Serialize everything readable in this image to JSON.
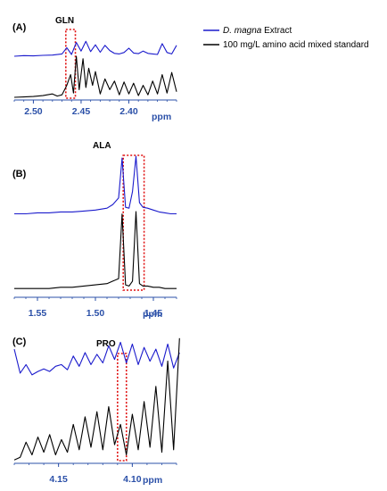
{
  "legend": [
    {
      "italic": "D. magna",
      "rest": " Extract",
      "color": "#1a1acc"
    },
    {
      "italic": "",
      "rest": "100 mg/L amino acid mixed standard",
      "color": "#000000"
    }
  ],
  "colors": {
    "extract": "#1a1acc",
    "standard": "#000000",
    "axis": "#2b50a8",
    "highlight": "#e01010"
  },
  "chart_data": [
    {
      "type": "line",
      "panel": "(A)",
      "compound": "GLN",
      "xlabel": "ppm",
      "xlim": [
        2.52,
        2.35
      ],
      "ticks": [
        2.5,
        2.45,
        2.4
      ],
      "tick_labels": [
        "2.50",
        "2.45",
        "2.40"
      ],
      "highlight": [
        2.466,
        2.456
      ],
      "series": [
        {
          "name": "D. magna Extract",
          "color": "#1a1acc",
          "x": [
            2.52,
            2.51,
            2.5,
            2.49,
            2.48,
            2.47,
            2.465,
            2.46,
            2.455,
            2.45,
            2.445,
            2.44,
            2.435,
            2.43,
            2.425,
            2.42,
            2.415,
            2.41,
            2.405,
            2.4,
            2.395,
            2.39,
            2.385,
            2.38,
            2.375,
            2.37,
            2.365,
            2.36,
            2.355,
            2.35
          ],
          "y": [
            0.22,
            0.24,
            0.23,
            0.25,
            0.26,
            0.3,
            0.52,
            0.28,
            0.7,
            0.4,
            0.74,
            0.38,
            0.62,
            0.36,
            0.6,
            0.42,
            0.32,
            0.3,
            0.35,
            0.5,
            0.33,
            0.31,
            0.4,
            0.32,
            0.3,
            0.28,
            0.66,
            0.35,
            0.3,
            0.6
          ]
        },
        {
          "name": "100 mg/L amino acid mixed standard",
          "color": "#000000",
          "x": [
            2.52,
            2.51,
            2.5,
            2.49,
            2.48,
            2.475,
            2.47,
            2.465,
            2.461,
            2.458,
            2.455,
            2.452,
            2.448,
            2.445,
            2.442,
            2.438,
            2.435,
            2.43,
            2.425,
            2.42,
            2.415,
            2.41,
            2.405,
            2.4,
            2.395,
            2.39,
            2.385,
            2.38,
            2.375,
            2.37,
            2.365,
            2.36,
            2.355,
            2.35
          ],
          "y": [
            0.02,
            0.03,
            0.04,
            0.06,
            0.1,
            0.05,
            0.08,
            0.3,
            0.55,
            0.12,
            0.98,
            0.2,
            0.92,
            0.25,
            0.7,
            0.3,
            0.62,
            0.1,
            0.45,
            0.2,
            0.4,
            0.08,
            0.38,
            0.1,
            0.35,
            0.06,
            0.3,
            0.08,
            0.4,
            0.1,
            0.55,
            0.12,
            0.6,
            0.15
          ]
        }
      ]
    },
    {
      "type": "line",
      "panel": "(B)",
      "compound": "ALA",
      "xlabel": "ppm",
      "xlim": [
        1.57,
        1.43
      ],
      "ticks": [
        1.55,
        1.5,
        1.45
      ],
      "tick_labels": [
        "1.55",
        "1.50",
        "1.45"
      ],
      "highlight": [
        1.476,
        1.458
      ],
      "series": [
        {
          "name": "D. magna Extract",
          "color": "#1a1acc",
          "x": [
            1.57,
            1.56,
            1.55,
            1.54,
            1.53,
            1.52,
            1.51,
            1.5,
            1.49,
            1.485,
            1.48,
            1.477,
            1.474,
            1.471,
            1.468,
            1.465,
            1.462,
            1.459,
            1.455,
            1.45,
            1.445,
            1.44,
            1.435,
            1.43
          ],
          "y": [
            0.38,
            0.38,
            0.39,
            0.39,
            0.4,
            0.4,
            0.41,
            0.42,
            0.44,
            0.48,
            0.55,
            0.98,
            0.45,
            0.44,
            0.62,
            1.0,
            0.5,
            0.45,
            0.44,
            0.42,
            0.4,
            0.39,
            0.38,
            0.38
          ]
        },
        {
          "name": "100 mg/L amino acid mixed standard",
          "color": "#000000",
          "x": [
            1.57,
            1.56,
            1.55,
            1.54,
            1.53,
            1.52,
            1.51,
            1.5,
            1.49,
            1.485,
            1.48,
            1.477,
            1.474,
            1.471,
            1.468,
            1.465,
            1.462,
            1.459,
            1.455,
            1.45,
            1.445,
            1.44,
            1.435,
            1.43
          ],
          "y": [
            0.02,
            0.02,
            0.02,
            0.02,
            0.03,
            0.03,
            0.04,
            0.05,
            0.06,
            0.08,
            0.1,
            0.62,
            0.05,
            0.04,
            0.08,
            0.64,
            0.06,
            0.04,
            0.04,
            0.03,
            0.03,
            0.02,
            0.02,
            0.02
          ]
        }
      ]
    },
    {
      "type": "line",
      "panel": "(C)",
      "compound": "PRO",
      "xlabel": "ppm",
      "xlim": [
        4.18,
        4.07
      ],
      "ticks": [
        4.15,
        4.1
      ],
      "tick_labels": [
        "4.15",
        "4.10"
      ],
      "highlight": [
        4.11,
        4.104
      ],
      "series": [
        {
          "name": "D. magna Extract",
          "color": "#1a1acc",
          "x": [
            4.18,
            4.176,
            4.172,
            4.168,
            4.164,
            4.16,
            4.156,
            4.152,
            4.148,
            4.144,
            4.14,
            4.136,
            4.132,
            4.128,
            4.124,
            4.12,
            4.116,
            4.112,
            4.108,
            4.104,
            4.1,
            4.096,
            4.092,
            4.088,
            4.084,
            4.08,
            4.076,
            4.072,
            4.068
          ],
          "y": [
            0.78,
            0.5,
            0.6,
            0.48,
            0.52,
            0.55,
            0.52,
            0.58,
            0.6,
            0.54,
            0.7,
            0.58,
            0.74,
            0.6,
            0.72,
            0.62,
            0.82,
            0.66,
            0.86,
            0.62,
            0.84,
            0.6,
            0.8,
            0.64,
            0.78,
            0.58,
            0.84,
            0.56,
            0.74
          ]
        },
        {
          "name": "100 mg/L amino acid mixed standard",
          "color": "#000000",
          "x": [
            4.18,
            4.176,
            4.172,
            4.168,
            4.164,
            4.16,
            4.156,
            4.152,
            4.148,
            4.144,
            4.14,
            4.136,
            4.132,
            4.128,
            4.124,
            4.12,
            4.116,
            4.112,
            4.108,
            4.104,
            4.1,
            4.096,
            4.092,
            4.088,
            4.084,
            4.08,
            4.076,
            4.072,
            4.068
          ],
          "y": [
            0.02,
            0.04,
            0.16,
            0.06,
            0.2,
            0.08,
            0.22,
            0.06,
            0.18,
            0.08,
            0.3,
            0.1,
            0.36,
            0.12,
            0.4,
            0.1,
            0.44,
            0.14,
            0.3,
            0.06,
            0.38,
            0.1,
            0.48,
            0.12,
            0.6,
            0.08,
            0.8,
            0.1,
            0.98
          ]
        }
      ]
    }
  ]
}
